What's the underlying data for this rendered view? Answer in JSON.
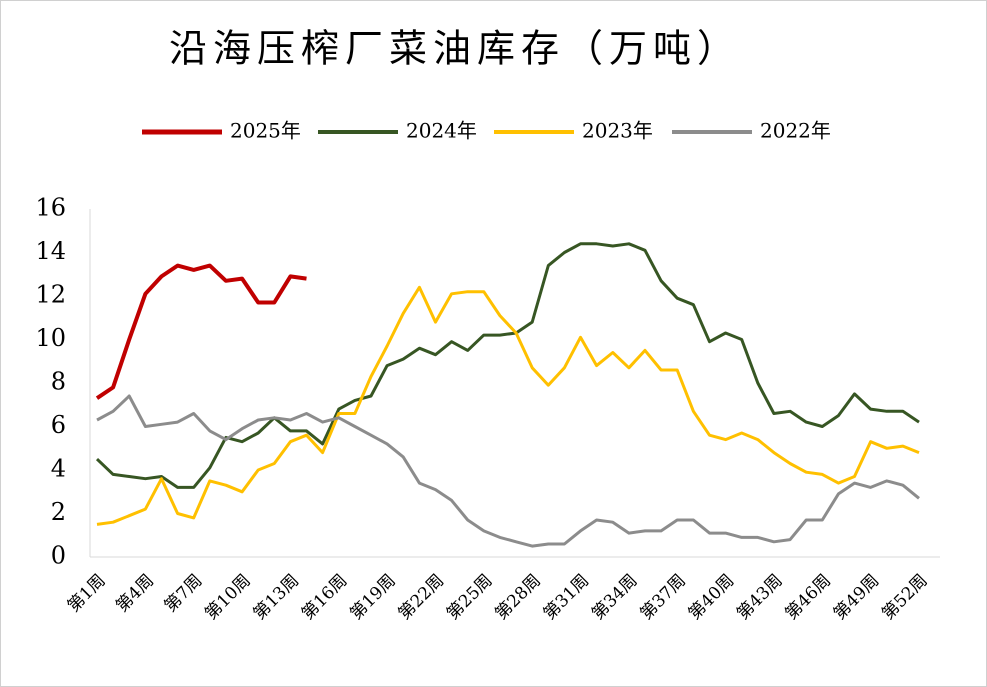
{
  "chart_data": {
    "type": "line",
    "title": "沿海压榨厂菜油库存（万吨）",
    "categories": [
      "第1周",
      null,
      null,
      "第4周",
      null,
      null,
      "第7周",
      null,
      null,
      "第10周",
      null,
      null,
      "第13周",
      null,
      null,
      "第16周",
      null,
      null,
      "第19周",
      null,
      null,
      "第22周",
      null,
      null,
      "第25周",
      null,
      null,
      "第28周",
      null,
      null,
      "第31周",
      null,
      null,
      "第34周",
      null,
      null,
      "第37周",
      null,
      null,
      "第40周",
      null,
      null,
      "第43周",
      null,
      null,
      "第46周",
      null,
      null,
      "第49周",
      null,
      null,
      "第52周"
    ],
    "series": [
      {
        "name": "2025年",
        "color": "#c00000",
        "values": [
          7.3,
          7.8,
          10.0,
          12.1,
          12.9,
          13.4,
          13.2,
          13.4,
          12.7,
          12.8,
          11.7,
          11.7,
          12.9,
          12.8,
          null,
          null,
          null,
          null,
          null,
          null,
          null,
          null,
          null,
          null,
          null,
          null,
          null,
          null,
          null,
          null,
          null,
          null,
          null,
          null,
          null,
          null,
          null,
          null,
          null,
          null,
          null,
          null,
          null,
          null,
          null,
          null,
          null,
          null,
          null,
          null,
          null,
          null
        ]
      },
      {
        "name": "2024年",
        "color": "#375623",
        "values": [
          4.5,
          3.8,
          3.7,
          3.6,
          3.7,
          3.2,
          3.2,
          4.1,
          5.5,
          5.3,
          5.7,
          6.4,
          5.8,
          5.8,
          5.2,
          6.8,
          7.2,
          7.4,
          8.8,
          9.1,
          9.6,
          9.3,
          9.9,
          9.5,
          10.2,
          10.2,
          10.3,
          10.8,
          13.4,
          14.0,
          14.4,
          14.4,
          14.3,
          14.4,
          14.1,
          12.7,
          11.9,
          11.6,
          9.9,
          10.3,
          10.0,
          8.0,
          6.6,
          6.7,
          6.2,
          6.0,
          6.5,
          7.5,
          6.8,
          6.7,
          6.7,
          6.2
        ]
      },
      {
        "name": "2023年",
        "color": "#ffc000",
        "values": [
          1.5,
          1.6,
          1.9,
          2.2,
          3.6,
          2.0,
          1.8,
          3.5,
          3.3,
          3.0,
          4.0,
          4.3,
          5.3,
          5.6,
          4.8,
          6.6,
          6.6,
          8.3,
          9.7,
          11.2,
          12.4,
          10.8,
          12.1,
          12.2,
          12.2,
          11.1,
          10.3,
          8.7,
          7.9,
          8.7,
          10.1,
          8.8,
          9.4,
          8.7,
          9.5,
          8.6,
          8.6,
          6.7,
          5.6,
          5.4,
          5.7,
          5.4,
          4.8,
          4.3,
          3.9,
          3.8,
          3.4,
          3.7,
          5.3,
          5.0,
          5.1,
          4.8
        ]
      },
      {
        "name": "2022年",
        "color": "#8c8c8c",
        "values": [
          6.3,
          6.7,
          7.4,
          6.0,
          6.1,
          6.2,
          6.6,
          5.8,
          5.4,
          5.9,
          6.3,
          6.4,
          6.3,
          6.6,
          6.2,
          6.4,
          6.0,
          5.6,
          5.2,
          4.6,
          3.4,
          3.1,
          2.6,
          1.7,
          1.2,
          0.9,
          0.7,
          0.5,
          0.6,
          0.6,
          1.2,
          1.7,
          1.6,
          1.1,
          1.2,
          1.2,
          1.7,
          1.7,
          1.1,
          1.1,
          0.9,
          0.9,
          0.7,
          0.8,
          1.7,
          1.7,
          2.9,
          3.4,
          3.2,
          3.5,
          3.3,
          2.7
        ]
      }
    ],
    "ylim": [
      0,
      16
    ],
    "yticks": [
      0,
      2,
      4,
      6,
      8,
      10,
      12,
      14,
      16
    ],
    "grid": false,
    "legend": "top"
  }
}
